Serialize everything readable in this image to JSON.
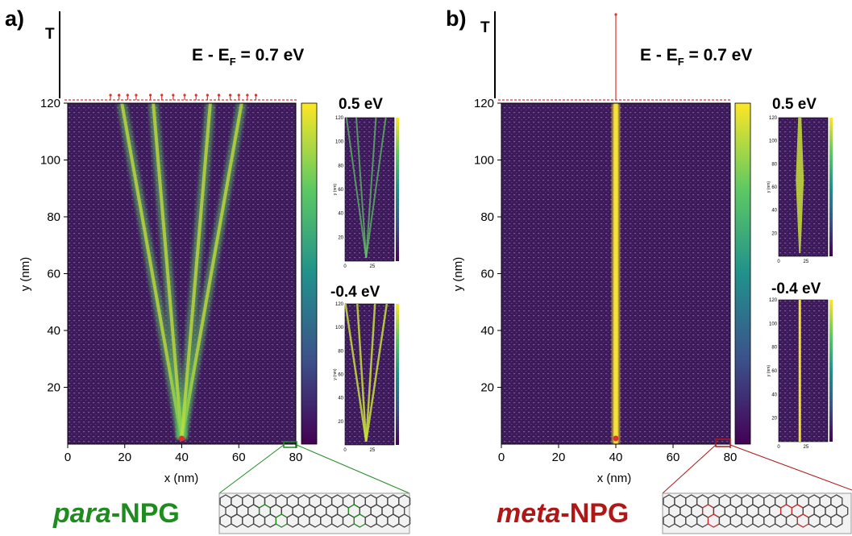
{
  "panels": [
    {
      "panel_label": "a)",
      "t_label": "T",
      "energy_label": {
        "main": "E - E",
        "sub": "F",
        "rest": " = 0.7 eV"
      },
      "molecule_label": {
        "prefix": "para",
        "suffix": "-NPG",
        "color": "#1e8c1e"
      },
      "inset_labels": [
        "0.5 eV",
        "-0.4 eV"
      ]
    },
    {
      "panel_label": "b)",
      "t_label": "T",
      "energy_label": {
        "main": "E - E",
        "sub": "F",
        "rest": " = 0.7 eV"
      },
      "molecule_label": {
        "prefix": "meta",
        "suffix": "-NPG",
        "color": "#b01818"
      },
      "inset_labels": [
        "0.5 eV",
        "-0.4 eV"
      ]
    }
  ],
  "chart_data": [
    {
      "type": "heatmap",
      "panel": "a",
      "xlabel": "x (nm)",
      "ylabel": "y (nm)",
      "xlim": [
        0,
        80
      ],
      "ylim": [
        0,
        120
      ],
      "xticks": [
        0,
        20,
        40,
        60,
        80
      ],
      "yticks": [
        20,
        40,
        60,
        80,
        100,
        120
      ],
      "colormap": "viridis",
      "pattern": "V-shaped spreading beams from source at x=40",
      "source": {
        "x": 40,
        "y": 2
      },
      "beams": [
        {
          "x0": 40,
          "y0": 2,
          "x1": 19,
          "y1": 120
        },
        {
          "x0": 40,
          "y0": 2,
          "x1": 61,
          "y1": 120
        },
        {
          "x0": 40,
          "y0": 2,
          "x1": 30,
          "y1": 120
        },
        {
          "x0": 40,
          "y0": 2,
          "x1": 50,
          "y1": 120
        }
      ],
      "transmission_peaks_x": [
        15,
        18,
        21,
        24,
        29,
        33,
        37,
        41,
        45,
        49,
        53,
        57,
        60,
        63,
        66
      ],
      "insets": [
        {
          "label": "0.5 eV",
          "xticks": [
            0,
            25
          ],
          "yticks": [
            20,
            40,
            60,
            80,
            100,
            120
          ],
          "ylabel": "y (nm)"
        },
        {
          "label": "-0.4 eV",
          "xticks": [
            0,
            25
          ],
          "yticks": [
            20,
            40,
            60,
            80,
            100,
            120
          ],
          "ylabel": "y (nm)"
        }
      ]
    },
    {
      "type": "heatmap",
      "panel": "b",
      "xlabel": "x (nm)",
      "ylabel": "y (nm)",
      "xlim": [
        0,
        80
      ],
      "ylim": [
        0,
        120
      ],
      "xticks": [
        0,
        20,
        40,
        60,
        80
      ],
      "yticks": [
        20,
        40,
        60,
        80,
        100,
        120
      ],
      "colormap": "viridis",
      "pattern": "single collimated beam at x=40",
      "source": {
        "x": 40,
        "y": 2
      },
      "beams": [
        {
          "x0": 40,
          "y0": 2,
          "x1": 40,
          "y1": 120
        }
      ],
      "transmission_peaks_x": [
        40
      ],
      "insets": [
        {
          "label": "0.5 eV",
          "xticks": [
            0,
            25
          ],
          "yticks": [
            20,
            40,
            60,
            80,
            100,
            120
          ],
          "ylabel": "y (nm)"
        },
        {
          "label": "-0.4 eV",
          "xticks": [
            0,
            25
          ],
          "yticks": [
            20,
            40,
            60,
            80,
            100,
            120
          ],
          "ylabel": "y (nm)"
        }
      ]
    }
  ]
}
